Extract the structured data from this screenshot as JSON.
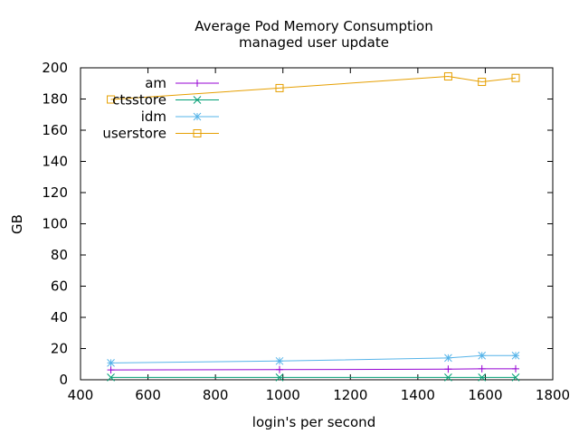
{
  "chart_data": {
    "type": "line",
    "title": "Average Pod Memory Consumption",
    "subtitle": "managed user update",
    "xlabel": "login's per second",
    "ylabel": "GB",
    "xlim": [
      400,
      1800
    ],
    "ylim": [
      0,
      200
    ],
    "xticks": [
      400,
      600,
      800,
      1000,
      1200,
      1400,
      1600,
      1800
    ],
    "yticks": [
      0,
      20,
      40,
      60,
      80,
      100,
      120,
      140,
      160,
      180,
      200
    ],
    "grid": false,
    "legend_position": "top-left",
    "x": [
      490,
      990,
      1490,
      1590,
      1690
    ],
    "series": [
      {
        "name": "am",
        "color": "#9400d3",
        "marker": "plus",
        "values": [
          6.3,
          6.5,
          6.8,
          7.0,
          7.0
        ]
      },
      {
        "name": "ctsstore",
        "color": "#009e73",
        "marker": "x",
        "values": [
          1.5,
          1.5,
          1.5,
          1.5,
          1.5
        ]
      },
      {
        "name": "idm",
        "color": "#56b4e9",
        "marker": "star",
        "values": [
          10.8,
          12.0,
          14.0,
          15.5,
          15.5
        ]
      },
      {
        "name": "userstore",
        "color": "#e69f00",
        "marker": "square",
        "values": [
          179.7,
          187.0,
          194.5,
          191.0,
          193.5
        ]
      }
    ]
  }
}
